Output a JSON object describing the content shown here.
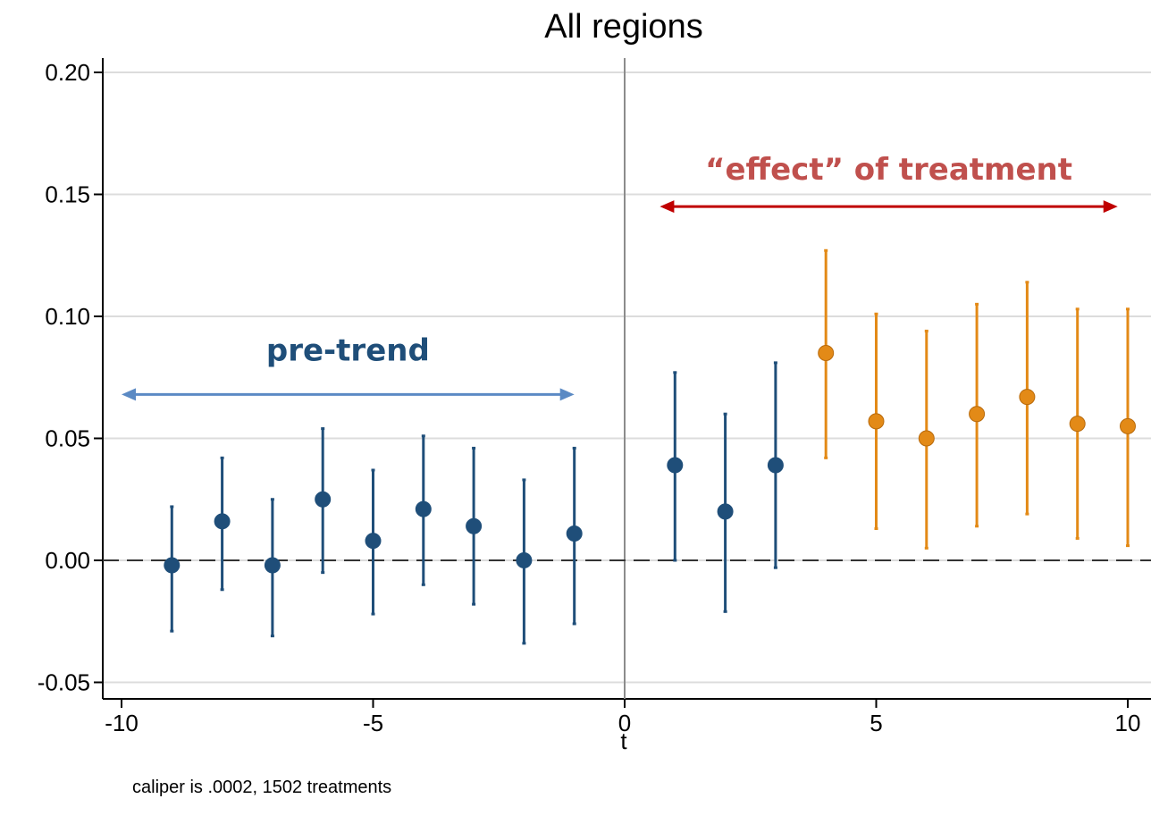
{
  "chart_data": {
    "type": "scatter",
    "title": "All regions",
    "xlabel": "t",
    "ylabel": "",
    "xlim": [
      -10,
      10
    ],
    "ylim": [
      -0.05,
      0.2
    ],
    "x_ticks": [
      -10,
      -5,
      0,
      5,
      10
    ],
    "x_tick_labels": [
      "-10",
      "-5",
      "0",
      "5",
      "10"
    ],
    "y_ticks": [
      -0.05,
      0,
      0.05,
      0.1,
      0.15,
      0.2
    ],
    "y_tick_labels": [
      "-0.05",
      "0.00",
      "0.05",
      "0.10",
      "0.15",
      "0.20"
    ],
    "grid": true,
    "reference_lines": {
      "vertical_x": 0,
      "horizontal_dashed_y": 0
    },
    "series": [
      {
        "color": "#1f4e79",
        "x": [
          -9,
          -8,
          -7,
          -6,
          -5,
          -4,
          -3,
          -2,
          -1,
          1,
          2,
          3
        ],
        "y": [
          -0.002,
          0.016,
          -0.002,
          0.025,
          0.008,
          0.021,
          0.014,
          0.0,
          0.011,
          0.039,
          0.02,
          0.039
        ],
        "lower": [
          -0.029,
          -0.012,
          -0.031,
          -0.005,
          -0.022,
          -0.01,
          -0.018,
          -0.034,
          -0.026,
          0.0,
          -0.021,
          -0.003
        ],
        "upper": [
          0.022,
          0.042,
          0.025,
          0.054,
          0.037,
          0.051,
          0.046,
          0.033,
          0.046,
          0.077,
          0.06,
          0.081
        ]
      },
      {
        "color": "#e38a17",
        "x": [
          4,
          5,
          6,
          7,
          8,
          9,
          10
        ],
        "y": [
          0.085,
          0.057,
          0.05,
          0.06,
          0.067,
          0.056,
          0.055
        ],
        "lower": [
          0.042,
          0.013,
          0.005,
          0.014,
          0.019,
          0.009,
          0.006
        ],
        "upper": [
          0.127,
          0.101,
          0.094,
          0.105,
          0.114,
          0.103,
          0.103
        ]
      }
    ],
    "annotations": [
      {
        "text": "pre-trend",
        "color": "#1f4e79",
        "arrow_color": "#5b8ac4",
        "arrow_x": [
          -10,
          -1
        ],
        "arrow_y": 0.068
      },
      {
        "text": "“effect” of treatment",
        "color": "#c0504d",
        "arrow_color": "#c00000",
        "arrow_x": [
          0.7,
          9.8
        ],
        "arrow_y": 0.145
      }
    ],
    "note": "caliper is .0002, 1502 treatments"
  }
}
